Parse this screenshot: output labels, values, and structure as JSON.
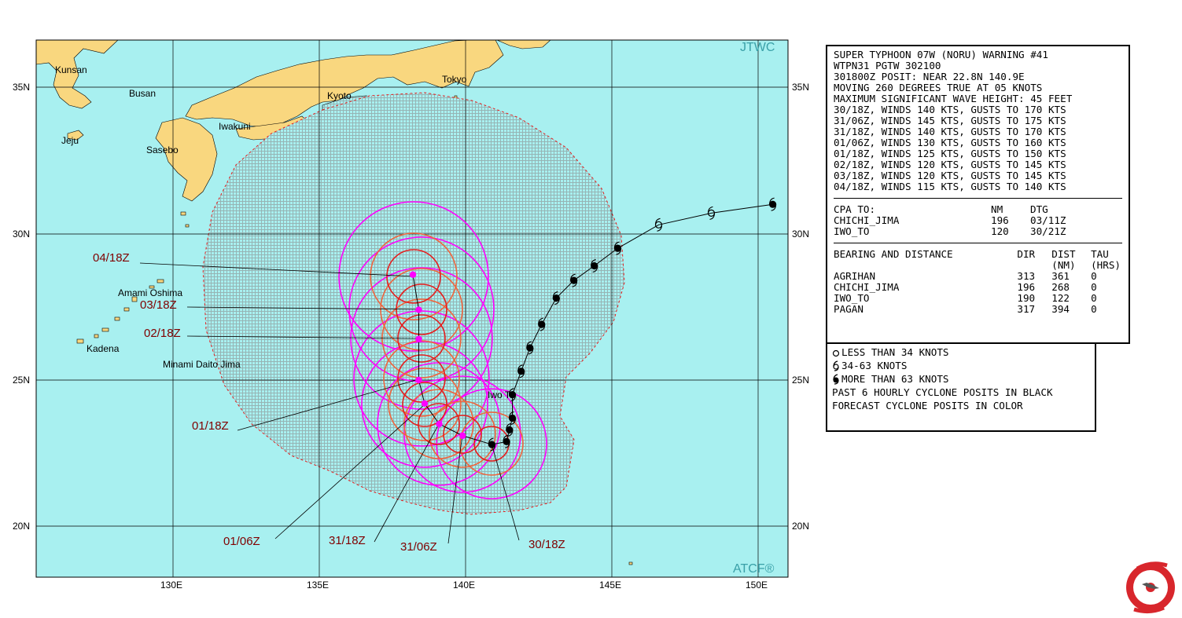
{
  "map": {
    "agency_label": "JTWC",
    "producer_label": "ATCF®",
    "lat_labels": [
      "35N",
      "30N",
      "25N",
      "20N"
    ],
    "lon_labels": [
      "130E",
      "135E",
      "140E",
      "145E",
      "150E"
    ],
    "place_names": [
      "Kunsan",
      "Busan",
      "Jeju",
      "Sasebo",
      "Iwakuni",
      "Kyoto",
      "Tokyo",
      "Amami Oshima",
      "Kadena",
      "Minami Daito Jima",
      "Iwo To"
    ],
    "forecast_time_labels": [
      "04/18Z",
      "03/18Z",
      "02/18Z",
      "01/18Z",
      "01/06Z",
      "31/18Z",
      "31/06Z",
      "30/18Z"
    ],
    "colors": {
      "ocean": "#a8f0f0",
      "land": "#f9d77f",
      "danger_area": "#96b4b4",
      "wind_34kt": "#ff00ff",
      "wind_50kt": "#f0643c",
      "wind_64kt": "#e61e1e",
      "label": "#800000"
    }
  },
  "chart_data": {
    "type": "map",
    "extent": {
      "lon": [
        125.0,
        151.0
      ],
      "lat": [
        18.5,
        36.7
      ]
    },
    "past_track": [
      {
        "lon": 150.5,
        "lat": 31.0,
        "intensity": "more than 63 knots"
      },
      {
        "lon": 148.4,
        "lat": 30.7,
        "intensity": "34-63 knots"
      },
      {
        "lon": 146.6,
        "lat": 30.3,
        "intensity": "34-63 knots"
      },
      {
        "lon": 145.2,
        "lat": 29.5,
        "intensity": "more than 63 knots"
      },
      {
        "lon": 144.4,
        "lat": 28.9,
        "intensity": "more than 63 knots"
      },
      {
        "lon": 143.7,
        "lat": 28.4,
        "intensity": "more than 63 knots"
      },
      {
        "lon": 143.1,
        "lat": 27.8,
        "intensity": "more than 63 knots"
      },
      {
        "lon": 142.6,
        "lat": 26.9,
        "intensity": "more than 63 knots"
      },
      {
        "lon": 142.2,
        "lat": 26.1,
        "intensity": "more than 63 knots"
      },
      {
        "lon": 141.9,
        "lat": 25.3,
        "intensity": "more than 63 knots"
      },
      {
        "lon": 141.6,
        "lat": 24.5,
        "intensity": "more than 63 knots"
      },
      {
        "lon": 141.6,
        "lat": 23.7,
        "intensity": "more than 63 knots"
      },
      {
        "lon": 141.5,
        "lat": 23.3,
        "intensity": "more than 63 knots"
      },
      {
        "lon": 141.4,
        "lat": 22.9,
        "intensity": "more than 63 knots"
      },
      {
        "lon": 140.9,
        "lat": 22.8,
        "intensity": "more than 63 knots"
      }
    ],
    "forecast_track": [
      {
        "label": "30/18Z",
        "lon": 140.9,
        "lat": 22.8
      },
      {
        "label": "31/06Z",
        "lon": 139.9,
        "lat": 23.1
      },
      {
        "label": "31/18Z",
        "lon": 139.1,
        "lat": 23.5
      },
      {
        "label": "01/06Z",
        "lon": 138.6,
        "lat": 24.2
      },
      {
        "label": "01/18Z",
        "lon": 138.4,
        "lat": 25.0
      },
      {
        "label": "02/18Z",
        "lon": 138.4,
        "lat": 26.4
      },
      {
        "label": "03/18Z",
        "lon": 138.4,
        "lat": 27.4
      },
      {
        "label": "04/18Z",
        "lon": 138.2,
        "lat": 28.6
      }
    ]
  },
  "warning_panel": {
    "lines": [
      "SUPER TYPHOON 07W (NORU) WARNING #41",
      "WTPN31 PGTW 302100",
      "301800Z POSIT: NEAR 22.8N 140.9E",
      "MOVING 260 DEGREES TRUE AT 05 KNOTS",
      "MAXIMUM SIGNIFICANT WAVE HEIGHT: 45 FEET",
      "30/18Z, WINDS 140 KTS, GUSTS TO 170 KTS",
      "31/06Z, WINDS 145 KTS, GUSTS TO 175 KTS",
      "31/18Z, WINDS 140 KTS, GUSTS TO 170 KTS",
      "01/06Z, WINDS 130 KTS, GUSTS TO 160 KTS",
      "01/18Z, WINDS 125 KTS, GUSTS TO 150 KTS",
      "02/18Z, WINDS 120 KTS, GUSTS TO 145 KTS",
      "03/18Z, WINDS 120 KTS, GUSTS TO 145 KTS",
      "04/18Z, WINDS 115 KTS, GUSTS TO 140 KTS"
    ],
    "cpa": {
      "headers": [
        "CPA TO:",
        "NM",
        "DTG"
      ],
      "rows": [
        [
          "CHICHI_JIMA",
          "196",
          "03/11Z"
        ],
        [
          "IWO_TO",
          "120",
          "30/21Z"
        ]
      ]
    },
    "bearing": {
      "headers": [
        "BEARING AND DISTANCE",
        "DIR",
        "DIST",
        "TAU"
      ],
      "subheaders": [
        "",
        "",
        "(NM)",
        "(HRS)"
      ],
      "rows": [
        [
          "AGRIHAN",
          "313",
          "361",
          "0"
        ],
        [
          "CHICHI_JIMA",
          "196",
          "268",
          "0"
        ],
        [
          "IWO_TO",
          "190",
          "122",
          "0"
        ],
        [
          "PAGAN",
          "317",
          "394",
          "0"
        ]
      ]
    }
  },
  "legend": {
    "items": [
      {
        "icon": "open-circle-icon",
        "label": "LESS THAN 34 KNOTS"
      },
      {
        "icon": "tropical-storm-icon",
        "label": "34-63 KNOTS"
      },
      {
        "icon": "typhoon-icon",
        "label": "MORE THAN 63 KNOTS"
      }
    ],
    "notes": [
      "PAST 6 HOURLY CYCLONE POSITS IN BLACK",
      "FORECAST CYCLONE POSITS IN COLOR"
    ]
  },
  "seal": {
    "emblem": "JTWC emblem"
  }
}
